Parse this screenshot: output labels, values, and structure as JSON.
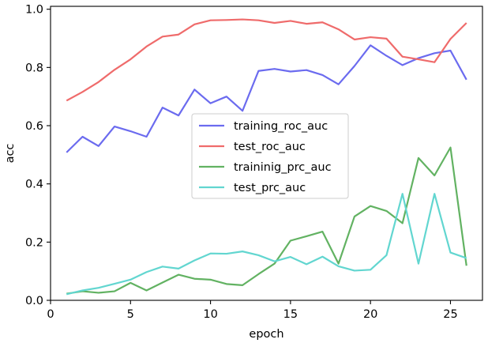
{
  "chart_data": {
    "type": "line",
    "xlabel": "epoch",
    "ylabel": "acc",
    "xlim": [
      0,
      27
    ],
    "ylim": [
      0,
      1.01
    ],
    "xticks": [
      0,
      5,
      10,
      15,
      20,
      25
    ],
    "yticks": [
      0.0,
      0.2,
      0.4,
      0.6,
      0.8,
      1.0
    ],
    "legend_placement": "center",
    "grid": false,
    "x": [
      1,
      2,
      3,
      4,
      5,
      6,
      7,
      8,
      9,
      10,
      11,
      12,
      13,
      14,
      15,
      16,
      17,
      18,
      19,
      20,
      21,
      22,
      23,
      24,
      25,
      26
    ],
    "series": [
      {
        "name": "training_roc_auc",
        "color": "#6b6bef",
        "values": [
          0.508,
          0.562,
          0.53,
          0.597,
          0.581,
          0.562,
          0.662,
          0.635,
          0.724,
          0.677,
          0.7,
          0.651,
          0.788,
          0.795,
          0.786,
          0.791,
          0.774,
          0.742,
          0.805,
          0.876,
          0.84,
          0.808,
          0.832,
          0.849,
          0.858,
          0.758
        ]
      },
      {
        "name": "test_roc_auc",
        "color": "#ef6b6b",
        "values": [
          0.686,
          0.716,
          0.75,
          0.792,
          0.828,
          0.872,
          0.906,
          0.913,
          0.948,
          0.962,
          0.963,
          0.965,
          0.962,
          0.953,
          0.96,
          0.95,
          0.955,
          0.931,
          0.896,
          0.904,
          0.899,
          0.837,
          0.828,
          0.818,
          0.898,
          0.953
        ]
      },
      {
        "name": "traininig_prc_auc",
        "color": "#62b262",
        "values": [
          0.023,
          0.031,
          0.026,
          0.031,
          0.06,
          0.034,
          0.061,
          0.088,
          0.074,
          0.071,
          0.056,
          0.052,
          0.09,
          0.126,
          0.205,
          0.22,
          0.236,
          0.126,
          0.288,
          0.324,
          0.307,
          0.265,
          0.489,
          0.429,
          0.525,
          0.119
        ]
      },
      {
        "name": "test_prc_auc",
        "color": "#62d6d0",
        "values": [
          0.021,
          0.034,
          0.043,
          0.057,
          0.071,
          0.097,
          0.116,
          0.109,
          0.137,
          0.161,
          0.16,
          0.168,
          0.155,
          0.134,
          0.149,
          0.124,
          0.15,
          0.117,
          0.102,
          0.105,
          0.155,
          0.366,
          0.126,
          0.366,
          0.164,
          0.145
        ]
      }
    ]
  }
}
